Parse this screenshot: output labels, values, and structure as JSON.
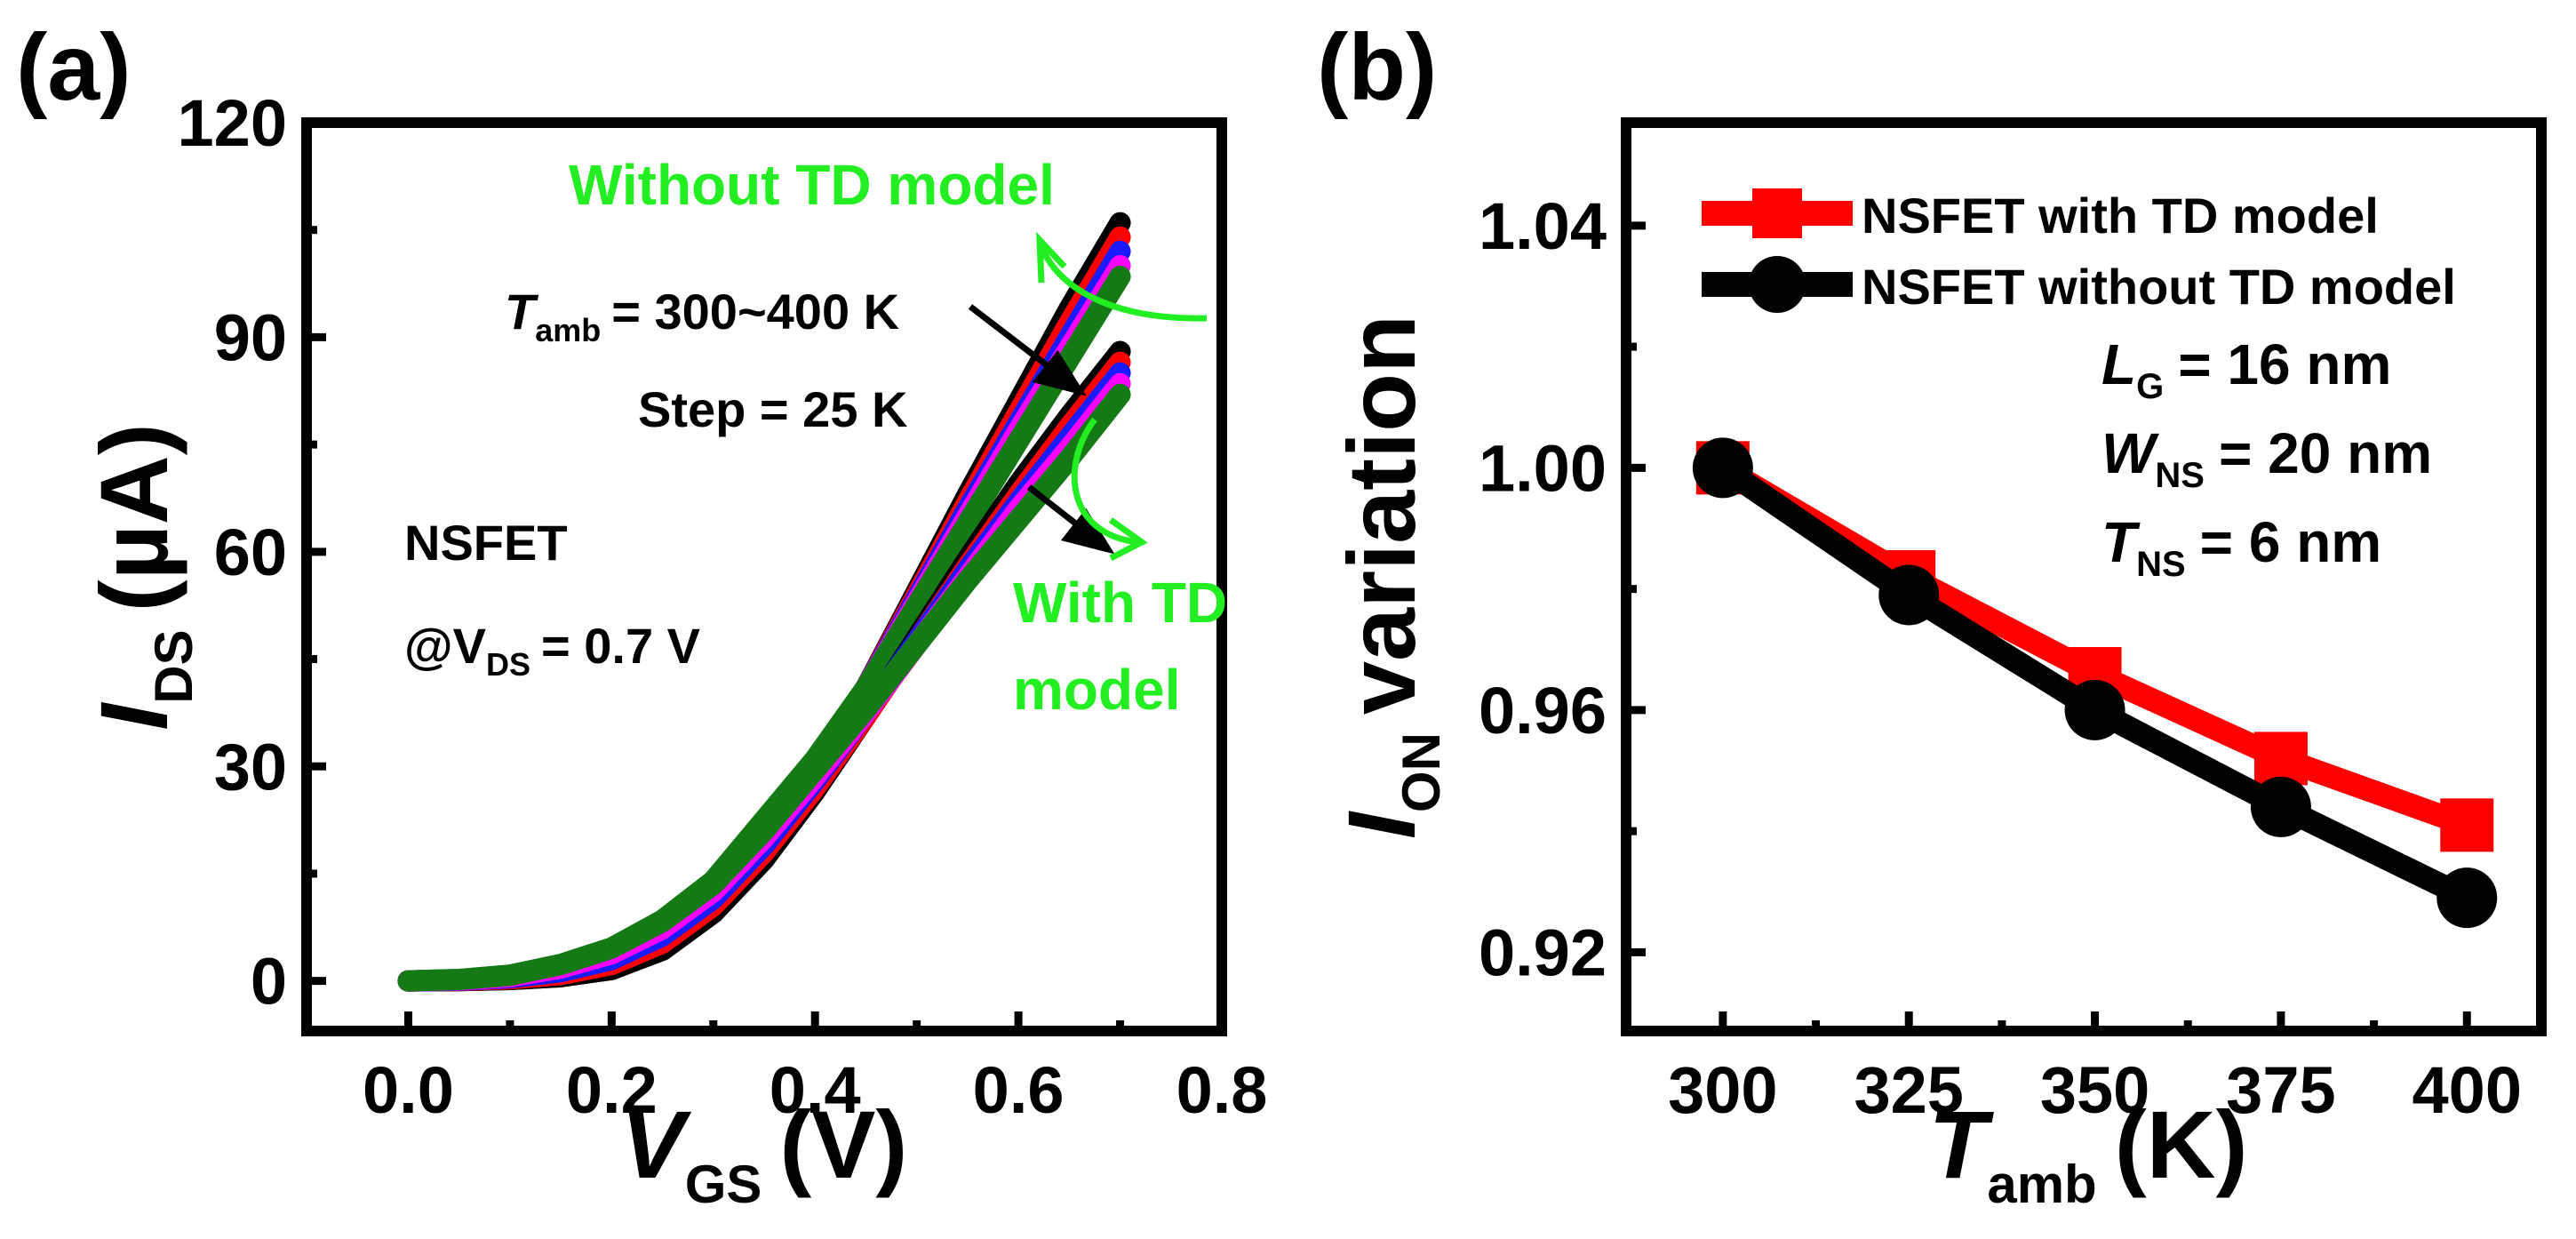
{
  "chart_data": [
    {
      "panel": "(a)",
      "type": "line",
      "xlabel": {
        "main": "V",
        "sub": "GS",
        "unit": "(V)"
      },
      "ylabel": {
        "main": "I",
        "sub": "DS",
        "unit": "(µA)"
      },
      "xlim": [
        -0.1,
        0.8
      ],
      "ylim": [
        -7,
        120
      ],
      "xticks": [
        0.0,
        0.2,
        0.4,
        0.6,
        0.8
      ],
      "xtick_labels": [
        "0.0",
        "0.2",
        "0.4",
        "0.6",
        "0.8"
      ],
      "yticks": [
        0,
        30,
        60,
        90,
        120
      ],
      "ytick_labels": [
        "0",
        "30",
        "60",
        "90",
        "120"
      ],
      "x": [
        0.0,
        0.05,
        0.1,
        0.15,
        0.2,
        0.25,
        0.3,
        0.35,
        0.4,
        0.45,
        0.5,
        0.55,
        0.6,
        0.65,
        0.7
      ],
      "series": [
        {
          "name": "Without TD model, T = 300 K",
          "color": "#000000",
          "values": [
            0,
            0.05,
            0.2,
            0.6,
            1.6,
            4.5,
            10,
            18.5,
            29,
            41,
            54.5,
            68,
            81,
            94,
            106
          ]
        },
        {
          "name": "Without TD model, T = 325 K",
          "color": "#ff0000",
          "values": [
            0,
            0.07,
            0.3,
            0.9,
            2.3,
            5.5,
            11,
            19.5,
            29.5,
            41,
            54,
            67,
            79.5,
            92,
            104
          ]
        },
        {
          "name": "Without TD model, T = 350 K",
          "color": "#1a1aff",
          "values": [
            0,
            0.1,
            0.45,
            1.3,
            3,
            6.5,
            12,
            20.5,
            30,
            41,
            53.5,
            66,
            78,
            90,
            102
          ]
        },
        {
          "name": "Without TD model, T = 375 K",
          "color": "#ff00ff",
          "values": [
            0,
            0.15,
            0.6,
            1.8,
            3.8,
            7.5,
            13,
            21.5,
            30.5,
            41,
            53,
            65,
            77,
            88.5,
            100
          ]
        },
        {
          "name": "Without TD model, T = 400 K",
          "color": "#157a15",
          "values": [
            0,
            0.2,
            0.8,
            2.3,
            4.6,
            8.5,
            14,
            22.5,
            31,
            41,
            52.5,
            64,
            75.5,
            87,
            98.5
          ]
        },
        {
          "name": "With TD model, T = 300 K",
          "color": "#000000",
          "values": [
            0,
            0.05,
            0.2,
            0.6,
            1.6,
            4.3,
            9.5,
            17,
            26.5,
            37,
            48,
            59,
            69.5,
            79,
            88
          ]
        },
        {
          "name": "With TD model, T = 325 K",
          "color": "#ff0000",
          "values": [
            0,
            0.07,
            0.3,
            0.9,
            2.3,
            5.3,
            10.5,
            18,
            27,
            37,
            47.5,
            58,
            68,
            77.5,
            86.5
          ]
        },
        {
          "name": "With TD model, T = 350 K",
          "color": "#1a1aff",
          "values": [
            0,
            0.1,
            0.45,
            1.3,
            3,
            6.3,
            11.5,
            19,
            28,
            37.5,
            47.5,
            57.5,
            67,
            76,
            85
          ]
        },
        {
          "name": "With TD model, T = 375 K",
          "color": "#ff00ff",
          "values": [
            0,
            0.15,
            0.6,
            1.8,
            3.8,
            7.3,
            12.5,
            20,
            28.5,
            37.5,
            47,
            56.5,
            66,
            74.5,
            83.5
          ]
        },
        {
          "name": "With TD model, T = 400 K",
          "color": "#157a15",
          "values": [
            0,
            0.2,
            0.8,
            2.3,
            4.6,
            8.3,
            13.5,
            21,
            29.5,
            38,
            47,
            56,
            64.5,
            73,
            82
          ]
        }
      ],
      "annotations": {
        "without_td": "Without TD model",
        "with_td_line1": "With TD",
        "with_td_line2": "model",
        "tamb_prefix": "T",
        "tamb_sub": "amb",
        "tamb_range": "= 300~400 K",
        "step": "Step = 25 K",
        "device": "NSFET",
        "vds_prefix": "@V",
        "vds_sub": "DS",
        "vds_value": "= 0.7 V"
      }
    },
    {
      "panel": "(b)",
      "type": "line",
      "xlabel": {
        "main": "T",
        "sub": "amb",
        "unit": "(K)"
      },
      "ylabel": {
        "main": "I",
        "sub": "ON",
        "unit": "variation"
      },
      "xlim": [
        287,
        410
      ],
      "ylim": [
        0.907,
        1.057
      ],
      "xticks": [
        300,
        325,
        350,
        375,
        400
      ],
      "xtick_labels": [
        "300",
        "325",
        "350",
        "375",
        "400"
      ],
      "yticks": [
        0.92,
        0.96,
        1.0,
        1.04
      ],
      "ytick_labels": [
        "0.92",
        "0.96",
        "1.00",
        "1.04"
      ],
      "x": [
        300,
        325,
        350,
        375,
        400
      ],
      "series": [
        {
          "name": "NSFET with TD model",
          "color": "#ff0000",
          "marker": "square",
          "values": [
            1.0,
            0.982,
            0.966,
            0.952,
            0.941
          ]
        },
        {
          "name": "NSFET without TD model",
          "color": "#000000",
          "marker": "circle",
          "values": [
            1.0,
            0.979,
            0.96,
            0.944,
            0.929
          ]
        }
      ],
      "legend_position": "top-left",
      "params": {
        "lg_main": "L",
        "lg_sub": "G",
        "lg_value": "= 16 nm",
        "wns_main": "W",
        "wns_sub": "NS",
        "wns_value": "= 20 nm",
        "tns_main": "T",
        "tns_sub": "NS",
        "tns_value": "= 6 nm"
      }
    }
  ]
}
